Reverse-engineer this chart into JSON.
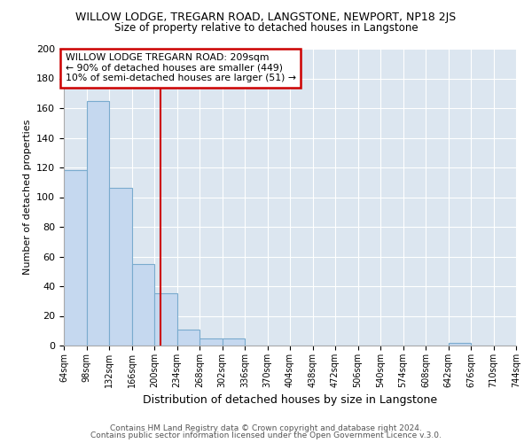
{
  "title": "WILLOW LODGE, TREGARN ROAD, LANGSTONE, NEWPORT, NP18 2JS",
  "subtitle": "Size of property relative to detached houses in Langstone",
  "xlabel": "Distribution of detached houses by size in Langstone",
  "ylabel": "Number of detached properties",
  "bar_values": [
    118,
    165,
    106,
    55,
    35,
    11,
    5,
    5,
    0,
    0,
    0,
    0,
    0,
    0,
    0,
    0,
    0,
    2,
    0,
    0
  ],
  "bin_edges": [
    64,
    98,
    132,
    166,
    200,
    234,
    268,
    302,
    336,
    370,
    404,
    438,
    472,
    506,
    540,
    574,
    608,
    642,
    676,
    710,
    744
  ],
  "tick_labels": [
    "64sqm",
    "98sqm",
    "132sqm",
    "166sqm",
    "200sqm",
    "234sqm",
    "268sqm",
    "302sqm",
    "336sqm",
    "370sqm",
    "404sqm",
    "438sqm",
    "472sqm",
    "506sqm",
    "540sqm",
    "574sqm",
    "608sqm",
    "642sqm",
    "676sqm",
    "710sqm",
    "744sqm"
  ],
  "bar_color": "#c5d8ef",
  "bar_edge_color": "#7aabce",
  "vline_x": 209,
  "vline_color": "#cc0000",
  "annotation_text": "WILLOW LODGE TREGARN ROAD: 209sqm\n← 90% of detached houses are smaller (449)\n10% of semi-detached houses are larger (51) →",
  "annotation_box_edge": "#cc0000",
  "ylim": [
    0,
    200
  ],
  "yticks": [
    0,
    20,
    40,
    60,
    80,
    100,
    120,
    140,
    160,
    180,
    200
  ],
  "footer_line1": "Contains HM Land Registry data © Crown copyright and database right 2024.",
  "footer_line2": "Contains public sector information licensed under the Open Government Licence v.3.0.",
  "bg_color": "#ffffff",
  "plot_bg_color": "#dce6f0",
  "grid_color": "#ffffff",
  "title_fontsize": 9,
  "subtitle_fontsize": 8.5
}
